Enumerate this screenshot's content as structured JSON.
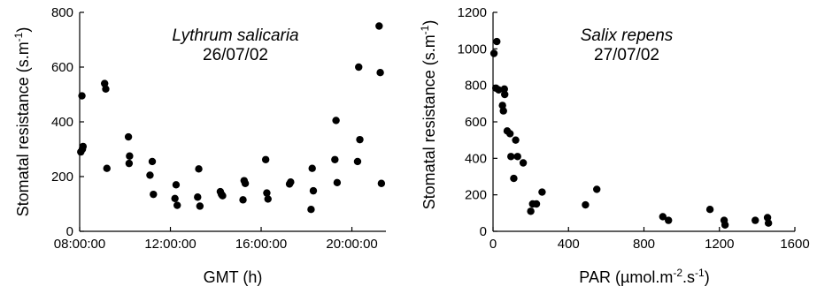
{
  "chart_data": [
    {
      "type": "scatter",
      "title": "Lythrum salicaria",
      "subtitle": "26/07/02",
      "xlabel": "GMT (h)",
      "ylabel_main": "Stomatal resistance (s.m",
      "ylabel_sup": "-1",
      "ylabel_end": ")",
      "x_unit": "hours",
      "xlim": [
        8,
        21.5
      ],
      "ylim": [
        0,
        800
      ],
      "xticks": [
        {
          "value": 8,
          "label": "08:00:00"
        },
        {
          "value": 12,
          "label": "12:00:00"
        },
        {
          "value": 16,
          "label": "16:00:00"
        },
        {
          "value": 20,
          "label": "20:00:00"
        }
      ],
      "yticks": [
        {
          "value": 0,
          "label": "0"
        },
        {
          "value": 200,
          "label": "200"
        },
        {
          "value": 400,
          "label": "400"
        },
        {
          "value": 600,
          "label": "600"
        },
        {
          "value": 800,
          "label": "800"
        }
      ],
      "points": [
        [
          8.1,
          495
        ],
        [
          8.15,
          310
        ],
        [
          8.12,
          300
        ],
        [
          8.05,
          290
        ],
        [
          9.1,
          540
        ],
        [
          9.15,
          520
        ],
        [
          9.2,
          230
        ],
        [
          10.15,
          345
        ],
        [
          10.2,
          275
        ],
        [
          10.18,
          248
        ],
        [
          11.2,
          255
        ],
        [
          11.1,
          205
        ],
        [
          11.25,
          135
        ],
        [
          12.25,
          170
        ],
        [
          12.2,
          120
        ],
        [
          12.3,
          95
        ],
        [
          13.25,
          228
        ],
        [
          13.2,
          125
        ],
        [
          13.3,
          92
        ],
        [
          14.2,
          145
        ],
        [
          14.25,
          135
        ],
        [
          14.3,
          130
        ],
        [
          15.25,
          185
        ],
        [
          15.3,
          175
        ],
        [
          15.2,
          115
        ],
        [
          16.2,
          262
        ],
        [
          16.25,
          140
        ],
        [
          16.3,
          118
        ],
        [
          17.3,
          180
        ],
        [
          17.25,
          173
        ],
        [
          18.25,
          230
        ],
        [
          18.3,
          148
        ],
        [
          18.2,
          80
        ],
        [
          19.3,
          405
        ],
        [
          19.25,
          262
        ],
        [
          19.35,
          178
        ],
        [
          20.3,
          600
        ],
        [
          20.35,
          335
        ],
        [
          20.25,
          255
        ],
        [
          21.2,
          750
        ],
        [
          21.25,
          580
        ],
        [
          21.3,
          175
        ]
      ]
    },
    {
      "type": "scatter",
      "title": "Salix repens",
      "subtitle": "27/07/02",
      "xlabel_main": "PAR (µmol.m",
      "xlabel_sup1": "-2",
      "xlabel_mid": ".s",
      "xlabel_sup2": "-1",
      "xlabel_end": ")",
      "ylabel_main": "Stomatal resistance (s.m",
      "ylabel_sup": "-1",
      "ylabel_end": ")",
      "xlim": [
        0,
        1600
      ],
      "ylim": [
        0,
        1200
      ],
      "xticks": [
        {
          "value": 0,
          "label": "0"
        },
        {
          "value": 400,
          "label": "400"
        },
        {
          "value": 800,
          "label": "800"
        },
        {
          "value": 1200,
          "label": "1200"
        },
        {
          "value": 1600,
          "label": "1600"
        }
      ],
      "yticks": [
        {
          "value": 0,
          "label": "0"
        },
        {
          "value": 200,
          "label": "200"
        },
        {
          "value": 400,
          "label": "400"
        },
        {
          "value": 600,
          "label": "600"
        },
        {
          "value": 800,
          "label": "800"
        },
        {
          "value": 1000,
          "label": "1000"
        },
        {
          "value": 1200,
          "label": "1200"
        }
      ],
      "points": [
        [
          5,
          975
        ],
        [
          20,
          1040
        ],
        [
          15,
          785
        ],
        [
          30,
          775
        ],
        [
          60,
          780
        ],
        [
          62,
          750
        ],
        [
          50,
          690
        ],
        [
          55,
          660
        ],
        [
          75,
          550
        ],
        [
          90,
          535
        ],
        [
          120,
          500
        ],
        [
          160,
          375
        ],
        [
          95,
          410
        ],
        [
          130,
          410
        ],
        [
          110,
          290
        ],
        [
          200,
          110
        ],
        [
          210,
          150
        ],
        [
          230,
          150
        ],
        [
          260,
          215
        ],
        [
          490,
          145
        ],
        [
          550,
          230
        ],
        [
          900,
          80
        ],
        [
          930,
          60
        ],
        [
          1150,
          120
        ],
        [
          1225,
          60
        ],
        [
          1230,
          35
        ],
        [
          1390,
          60
        ],
        [
          1455,
          75
        ],
        [
          1460,
          45
        ]
      ]
    }
  ]
}
